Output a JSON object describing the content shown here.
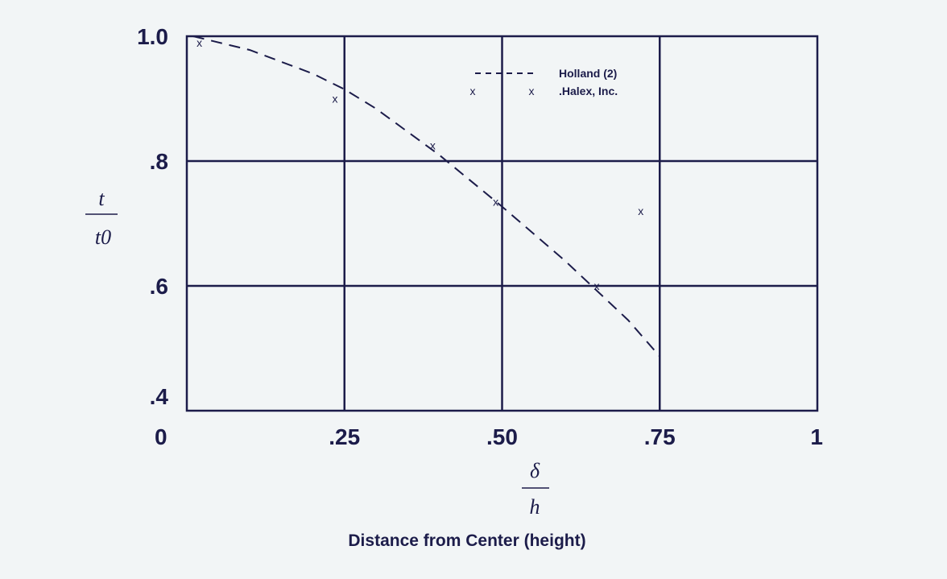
{
  "chart_data": {
    "type": "scatter",
    "xlabel_num": "δ",
    "xlabel_den": "h",
    "xlabel_caption": "Distance from Center (height)",
    "ylabel_num": "t",
    "ylabel_den": "t0",
    "xlim": [
      0,
      1
    ],
    "ylim": [
      0.4,
      1.0
    ],
    "x_ticks": [
      0,
      0.25,
      0.5,
      0.75,
      1
    ],
    "x_tick_labels": [
      "0",
      ".25",
      ".50",
      ".75",
      "1"
    ],
    "y_ticks": [
      1.0,
      0.8,
      0.6,
      0.4
    ],
    "y_tick_labels": [
      "1.0",
      ".8",
      ".6",
      ".4"
    ],
    "grid": true,
    "legend_position": "top-center",
    "series": [
      {
        "name": "Holland (2)",
        "style": "dashed-line",
        "x": [
          0.01,
          0.1,
          0.2,
          0.25,
          0.3,
          0.4,
          0.5,
          0.6,
          0.7,
          0.75
        ],
        "y": [
          1.0,
          0.978,
          0.94,
          0.915,
          0.884,
          0.81,
          0.727,
          0.64,
          0.545,
          0.487
        ]
      },
      {
        "name": ".Halex, Inc.",
        "style": "x-marker",
        "x": [
          0.02,
          0.235,
          0.39,
          0.49,
          0.65,
          0.72
        ],
        "y": [
          0.99,
          0.9,
          0.825,
          0.735,
          0.6,
          0.72
        ]
      }
    ],
    "colors": {
      "ink": "#1c1c4a",
      "background": "#f2f5f6"
    }
  }
}
